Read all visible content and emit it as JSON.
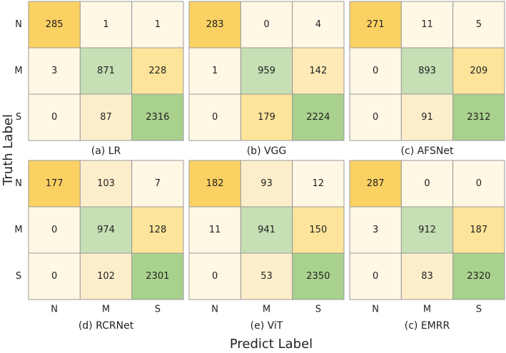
{
  "xlabel": "Predict Label",
  "ylabel": "Truth Label",
  "chart_data": [
    {
      "type": "heatmap",
      "title": "(a) LR",
      "y_categories": [
        "N",
        "M",
        "S"
      ],
      "values": [
        [
          285,
          1,
          1
        ],
        [
          3,
          871,
          228
        ],
        [
          0,
          87,
          2316
        ]
      ],
      "colors": [
        [
          "#fbd163",
          "#fef8e4",
          "#fef8e4"
        ],
        [
          "#fef8e4",
          "#c6dfb4",
          "#fde49a"
        ],
        [
          "#fef8e4",
          "#fdeecb",
          "#a9d18e"
        ]
      ]
    },
    {
      "type": "heatmap",
      "title": "(b) VGG",
      "values": [
        [
          283,
          0,
          4
        ],
        [
          1,
          959,
          142
        ],
        [
          0,
          179,
          2224
        ]
      ],
      "colors": [
        [
          "#fbd163",
          "#fef8e4",
          "#fef8e4"
        ],
        [
          "#fef8e4",
          "#c6dfb4",
          "#fdeab6"
        ],
        [
          "#fef8e4",
          "#fde49a",
          "#a9d18e"
        ]
      ]
    },
    {
      "type": "heatmap",
      "title": "(c) AFSNet",
      "values": [
        [
          271,
          11,
          5
        ],
        [
          0,
          893,
          209
        ],
        [
          0,
          91,
          2312
        ]
      ],
      "colors": [
        [
          "#fbd163",
          "#fef8e4",
          "#fef8e4"
        ],
        [
          "#fef8e4",
          "#c6dfb4",
          "#fde49a"
        ],
        [
          "#fef8e4",
          "#fdeecb",
          "#a9d18e"
        ]
      ]
    },
    {
      "type": "heatmap",
      "title": "(d) RCRNet",
      "y_categories": [
        "N",
        "M",
        "S"
      ],
      "x_categories": [
        "N",
        "M",
        "S"
      ],
      "values": [
        [
          177,
          103,
          7
        ],
        [
          0,
          974,
          128
        ],
        [
          0,
          102,
          2301
        ]
      ],
      "colors": [
        [
          "#fbd163",
          "#fdeecb",
          "#fef8e4"
        ],
        [
          "#fef8e4",
          "#c6dfb4",
          "#fde49a"
        ],
        [
          "#fef8e4",
          "#fdeecb",
          "#a9d18e"
        ]
      ]
    },
    {
      "type": "heatmap",
      "title": "(e) ViT",
      "x_categories": [
        "N",
        "M",
        "S"
      ],
      "values": [
        [
          182,
          93,
          12
        ],
        [
          11,
          941,
          150
        ],
        [
          0,
          53,
          2350
        ]
      ],
      "colors": [
        [
          "#fbd163",
          "#fdeecb",
          "#fef8e4"
        ],
        [
          "#fef8e4",
          "#c6dfb4",
          "#fde49a"
        ],
        [
          "#fef8e4",
          "#fdeecb",
          "#a9d18e"
        ]
      ]
    },
    {
      "type": "heatmap",
      "title": "(c) EMRR",
      "x_categories": [
        "N",
        "M",
        "S"
      ],
      "values": [
        [
          287,
          0,
          0
        ],
        [
          3,
          912,
          187
        ],
        [
          0,
          83,
          2320
        ]
      ],
      "colors": [
        [
          "#fbd163",
          "#fef8e4",
          "#fef8e4"
        ],
        [
          "#fef8e4",
          "#c6dfb4",
          "#fde49a"
        ],
        [
          "#fef8e4",
          "#fdeecb",
          "#a9d18e"
        ]
      ]
    }
  ]
}
